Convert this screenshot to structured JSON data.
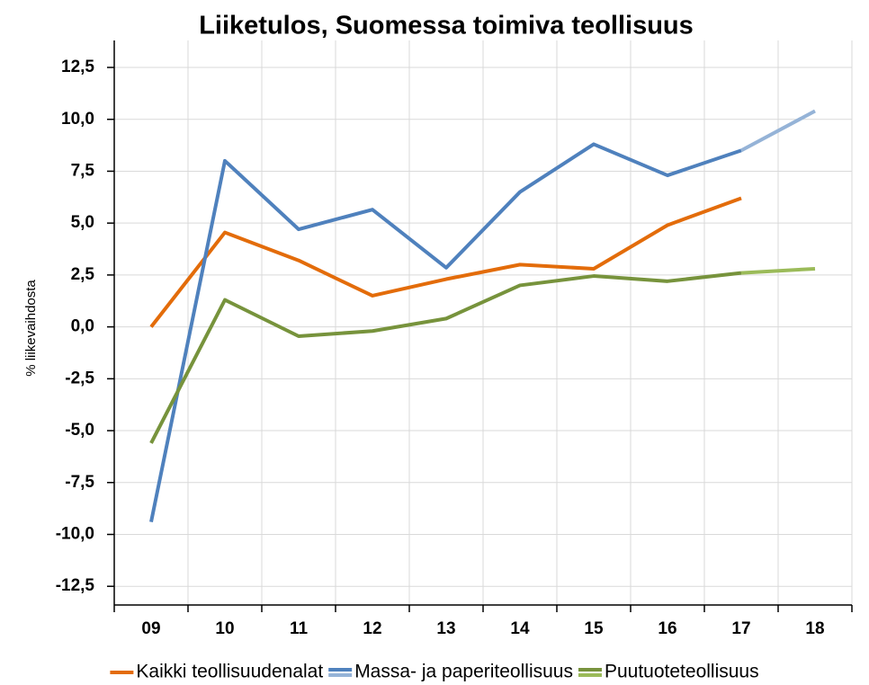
{
  "chart_data": {
    "type": "line",
    "title": "Liiketulos, Suomessa toimiva teollisuus",
    "y_label": "% liikevaihdosta",
    "categories": [
      "09",
      "10",
      "11",
      "12",
      "13",
      "14",
      "15",
      "16",
      "17",
      "18"
    ],
    "forecast_from": 8,
    "series": [
      {
        "name": "Kaikki teollisuudenalat",
        "color": "#e36c0a",
        "values": [
          0.0,
          4.55,
          3.2,
          1.5,
          2.3,
          3.0,
          2.8,
          4.9,
          6.2,
          null
        ]
      },
      {
        "name": "Massa- ja paperiteollisuus",
        "color": "#4f81bd",
        "forecast_color": "#95b3d7",
        "values": [
          -9.4,
          8.0,
          4.7,
          5.65,
          2.85,
          6.5,
          8.8,
          7.3,
          8.5,
          10.4
        ]
      },
      {
        "name": "Puutuoteteollisuus",
        "color": "#77933c",
        "forecast_color": "#9bbb59",
        "values": [
          -5.6,
          1.3,
          -0.45,
          -0.2,
          0.4,
          2.0,
          2.45,
          2.2,
          2.6,
          2.8
        ]
      }
    ],
    "ylim": [
      -13.4,
      13.8
    ],
    "yticks": [
      {
        "value": -12.5,
        "label": "-12,5"
      },
      {
        "value": -10,
        "label": "-10,0"
      },
      {
        "value": -7.5,
        "label": "-7,5"
      },
      {
        "value": -5,
        "label": "-5,0"
      },
      {
        "value": -2.5,
        "label": "-2,5"
      },
      {
        "value": 0,
        "label": "0,0"
      },
      {
        "value": 2.5,
        "label": "2,5"
      },
      {
        "value": 5,
        "label": "5,0"
      },
      {
        "value": 7.5,
        "label": "7,5"
      },
      {
        "value": 10,
        "label": "10,0"
      },
      {
        "value": 12.5,
        "label": "12,5"
      }
    ],
    "grid": true,
    "legend": "bottom"
  }
}
